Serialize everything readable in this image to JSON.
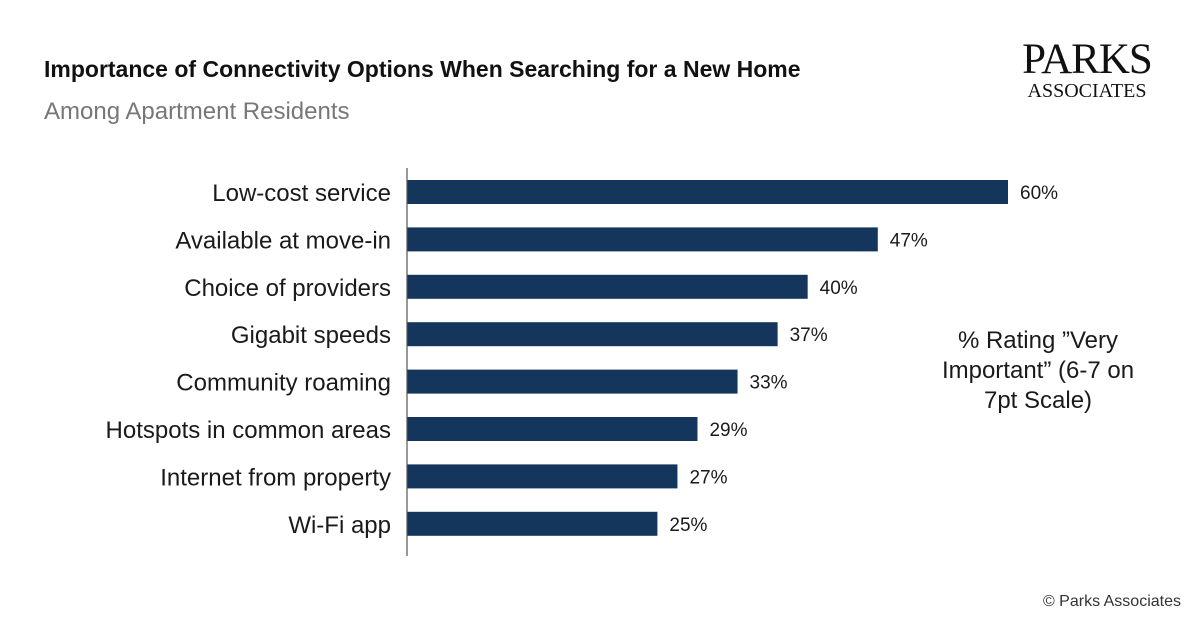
{
  "header": {
    "title": "Importance of Connectivity Options When Searching for a New Home",
    "subtitle": "Among Apartment Residents"
  },
  "logo": {
    "line1": "PARKS",
    "line2": "ASSOCIATES"
  },
  "annotation": "% Rating ”Very Important” (6-7 on 7pt Scale)",
  "copyright": "© Parks Associates",
  "colors": {
    "bar": "#14355c",
    "axis": "#555555"
  },
  "chart_data": {
    "type": "bar",
    "orientation": "horizontal",
    "title": "Importance of Connectivity Options When Searching for a New Home",
    "subtitle": "Among Apartment Residents",
    "categories": [
      "Low-cost service",
      "Available at move-in",
      "Choice of providers",
      "Gigabit speeds",
      "Community roaming",
      "Hotspots in common areas",
      "Internet from property",
      "Wi-Fi app"
    ],
    "values": [
      60,
      47,
      40,
      37,
      33,
      29,
      27,
      25
    ],
    "data_labels": [
      "60%",
      "47%",
      "40%",
      "37%",
      "33%",
      "29%",
      "27%",
      "25%"
    ],
    "unit": "%",
    "xlim": [
      0,
      60
    ],
    "grid": false,
    "legend": false
  }
}
